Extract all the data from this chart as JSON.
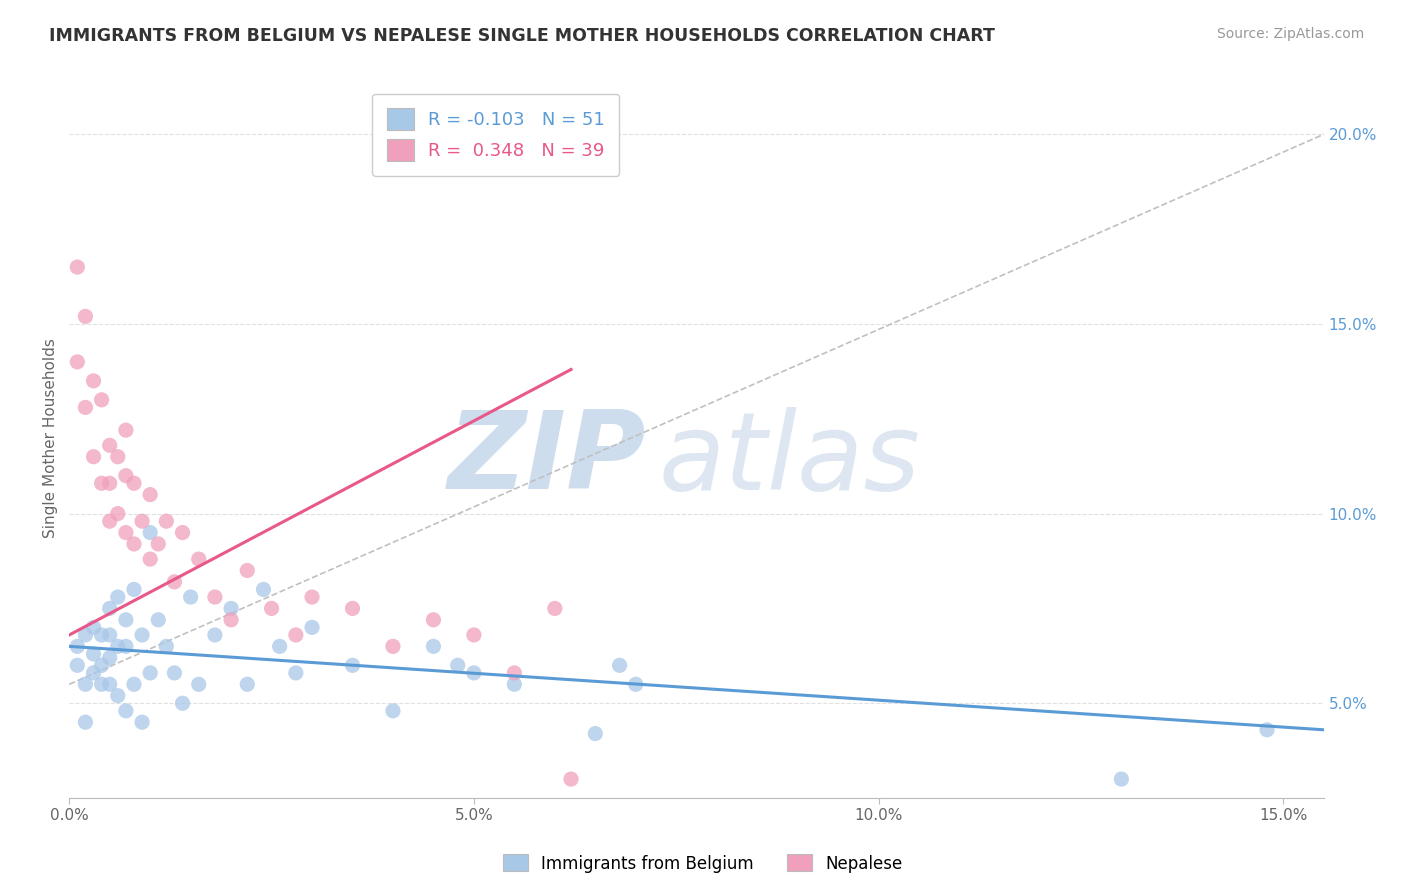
{
  "title": "IMMIGRANTS FROM BELGIUM VS NEPALESE SINGLE MOTHER HOUSEHOLDS CORRELATION CHART",
  "source": "Source: ZipAtlas.com",
  "ylabel": "Single Mother Households",
  "xlim": [
    0.0,
    0.155
  ],
  "ylim": [
    0.025,
    0.215
  ],
  "xticks": [
    0.0,
    0.05,
    0.1,
    0.15
  ],
  "xtick_labels": [
    "0.0%",
    "5.0%",
    "10.0%",
    "15.0%"
  ],
  "yticks_right": [
    0.05,
    0.1,
    0.15,
    0.2
  ],
  "ytick_labels_right": [
    "5.0%",
    "10.0%",
    "15.0%",
    "20.0%"
  ],
  "blue_color": "#A8C8E8",
  "pink_color": "#F0A0BC",
  "blue_line_color": "#5B9BD5",
  "pink_line_color": "#E85888",
  "trend_line_dashed_color": "#C0C0C0",
  "legend_r_blue": "-0.103",
  "legend_n_blue": "51",
  "legend_r_pink": "0.348",
  "legend_n_pink": "39",
  "watermark_zip": "ZIP",
  "watermark_atlas": "atlas",
  "blue_scatter_x": [
    0.001,
    0.001,
    0.002,
    0.002,
    0.002,
    0.003,
    0.003,
    0.003,
    0.004,
    0.004,
    0.004,
    0.005,
    0.005,
    0.005,
    0.005,
    0.006,
    0.006,
    0.006,
    0.007,
    0.007,
    0.007,
    0.008,
    0.008,
    0.009,
    0.009,
    0.01,
    0.01,
    0.011,
    0.012,
    0.013,
    0.014,
    0.015,
    0.016,
    0.018,
    0.02,
    0.022,
    0.024,
    0.026,
    0.028,
    0.03,
    0.035,
    0.04,
    0.045,
    0.048,
    0.05,
    0.055,
    0.065,
    0.068,
    0.07,
    0.13,
    0.148
  ],
  "blue_scatter_y": [
    0.065,
    0.06,
    0.068,
    0.055,
    0.045,
    0.07,
    0.063,
    0.058,
    0.068,
    0.06,
    0.055,
    0.075,
    0.068,
    0.062,
    0.055,
    0.078,
    0.065,
    0.052,
    0.072,
    0.065,
    0.048,
    0.08,
    0.055,
    0.068,
    0.045,
    0.095,
    0.058,
    0.072,
    0.065,
    0.058,
    0.05,
    0.078,
    0.055,
    0.068,
    0.075,
    0.055,
    0.08,
    0.065,
    0.058,
    0.07,
    0.06,
    0.048,
    0.065,
    0.06,
    0.058,
    0.055,
    0.042,
    0.06,
    0.055,
    0.03,
    0.043
  ],
  "pink_scatter_x": [
    0.001,
    0.001,
    0.002,
    0.002,
    0.003,
    0.003,
    0.004,
    0.004,
    0.005,
    0.005,
    0.005,
    0.006,
    0.006,
    0.007,
    0.007,
    0.007,
    0.008,
    0.008,
    0.009,
    0.01,
    0.01,
    0.011,
    0.012,
    0.013,
    0.014,
    0.016,
    0.018,
    0.02,
    0.022,
    0.025,
    0.028,
    0.03,
    0.035,
    0.04,
    0.045,
    0.05,
    0.055,
    0.06,
    0.062
  ],
  "pink_scatter_y": [
    0.165,
    0.14,
    0.152,
    0.128,
    0.135,
    0.115,
    0.13,
    0.108,
    0.118,
    0.108,
    0.098,
    0.115,
    0.1,
    0.122,
    0.11,
    0.095,
    0.108,
    0.092,
    0.098,
    0.105,
    0.088,
    0.092,
    0.098,
    0.082,
    0.095,
    0.088,
    0.078,
    0.072,
    0.085,
    0.075,
    0.068,
    0.078,
    0.075,
    0.065,
    0.072,
    0.068,
    0.058,
    0.075,
    0.03
  ],
  "blue_trend_x": [
    0.0,
    0.155
  ],
  "blue_trend_y": [
    0.065,
    0.043
  ],
  "pink_trend_x": [
    0.0,
    0.062
  ],
  "pink_trend_y": [
    0.068,
    0.138
  ],
  "dashed_trend_x": [
    0.0,
    0.155
  ],
  "dashed_trend_y": [
    0.055,
    0.2
  ]
}
